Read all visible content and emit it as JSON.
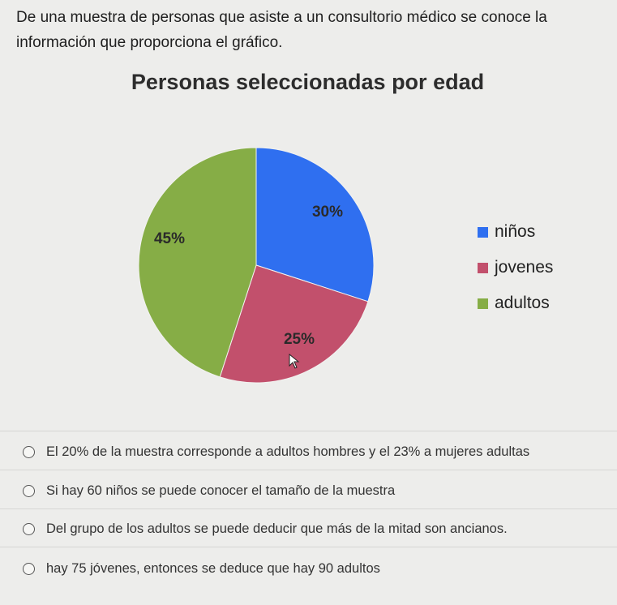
{
  "question": {
    "line1": "De una muestra de personas que asiste a un consultorio médico se conoce la",
    "line2": "información que proporciona el gráfico."
  },
  "chart_data": {
    "type": "pie",
    "title": "Personas  seleccionadas por edad",
    "slices": [
      {
        "label": "niños",
        "value": 30,
        "value_label": "30%",
        "color": "#2f6ff0"
      },
      {
        "label": "jovenes",
        "value": 25,
        "value_label": "25%",
        "color": "#c2506c"
      },
      {
        "label": "adultos",
        "value": 45,
        "value_label": "45%",
        "color": "#86ad46"
      }
    ],
    "legend_position": "right"
  },
  "options": [
    {
      "text": "El 20% de la muestra corresponde a adultos hombres y el 23% a mujeres adultas"
    },
    {
      "text": "Si hay 60 niños se puede conocer el tamaño de la muestra"
    },
    {
      "text": "Del grupo de los adultos se puede deducir que más de la mitad son ancianos."
    },
    {
      "text": "hay 75 jóvenes, entonces se deduce que hay 90 adultos"
    }
  ]
}
